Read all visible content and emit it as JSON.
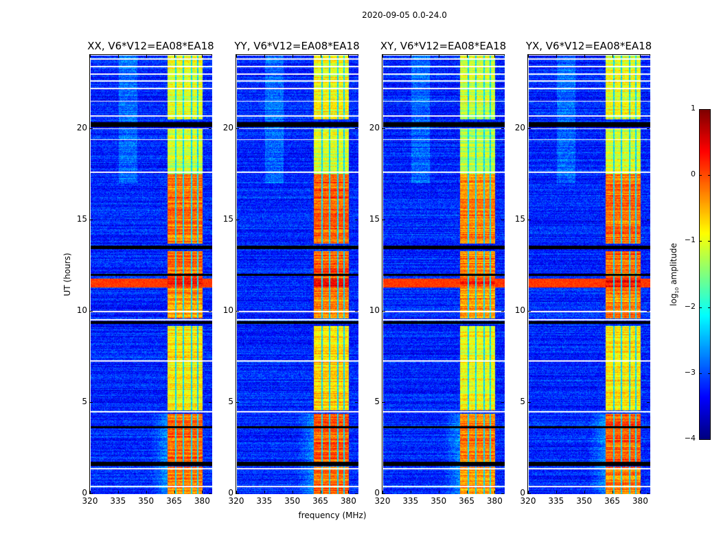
{
  "chart_data": {
    "type": "heatmap",
    "title": "2020-09-05 0.0-24.0",
    "xlabel": "frequency (MHz)",
    "ylabel": "UT (hours)",
    "xlim": [
      320,
      385
    ],
    "ylim": [
      0,
      24
    ],
    "xticks": [
      320,
      335,
      350,
      365,
      380
    ],
    "yticks": [
      0,
      5,
      10,
      15,
      20
    ],
    "panels": [
      {
        "title": "XX, V6*V12=EA08*EA18",
        "band_offset": 0,
        "rfi_row": true
      },
      {
        "title": "YY, V6*V12=EA08*EA18",
        "band_offset": 0.1,
        "rfi_row": true
      },
      {
        "title": "XY, V6*V12=EA08*EA18",
        "band_offset": -0.1,
        "rfi_row": true
      },
      {
        "title": "YX, V6*V12=EA08*EA18",
        "band_offset": 0.05,
        "rfi_row": true
      }
    ],
    "band_mhz": [
      361,
      380
    ],
    "band_gaps_mhz": [
      365.6,
      369.6,
      374.0,
      377.4
    ],
    "background_log10": -3.2,
    "band_profile_log10": [
      {
        "t": [
          0,
          1.5
        ],
        "v": -0.3
      },
      {
        "t": [
          1.7,
          4.4
        ],
        "v": -0.15
      },
      {
        "t": [
          4.6,
          9.2
        ],
        "v": -0.8
      },
      {
        "t": [
          9.6,
          11.3
        ],
        "v": -0.35
      },
      {
        "t": [
          11.3,
          11.8
        ],
        "v": 0.3
      },
      {
        "t": [
          11.8,
          13.3
        ],
        "v": -0.15
      },
      {
        "t": [
          13.7,
          17.5
        ],
        "v": -0.2
      },
      {
        "t": [
          17.5,
          20.0
        ],
        "v": -1.1
      },
      {
        "t": [
          20.5,
          24
        ],
        "v": -1.0
      }
    ],
    "flagged_black_hours": [
      [
        1.55,
        1.75
      ],
      [
        3.6,
        3.7
      ],
      [
        9.3,
        9.45
      ],
      [
        11.95,
        12.05
      ],
      [
        13.4,
        13.6
      ],
      [
        20.1,
        20.35
      ]
    ],
    "flagged_white_hours": [
      0.4,
      1.4,
      4.5,
      7.3,
      9.55,
      10.0,
      17.6,
      19.4,
      20.0,
      20.7,
      21.5,
      22.2,
      22.6,
      23.0,
      23.4,
      23.8
    ],
    "colorbar": {
      "label": "log10 amplitude",
      "label_main": "log",
      "label_sub": "10",
      "label_rest": " amplitude",
      "range": [
        -4,
        1
      ],
      "ticks": [
        -4,
        -3,
        -2,
        -1,
        0,
        1
      ],
      "tick_labels": [
        "−4",
        "−3",
        "−2",
        "−1",
        "0",
        "1"
      ],
      "colormap": "jet"
    }
  }
}
